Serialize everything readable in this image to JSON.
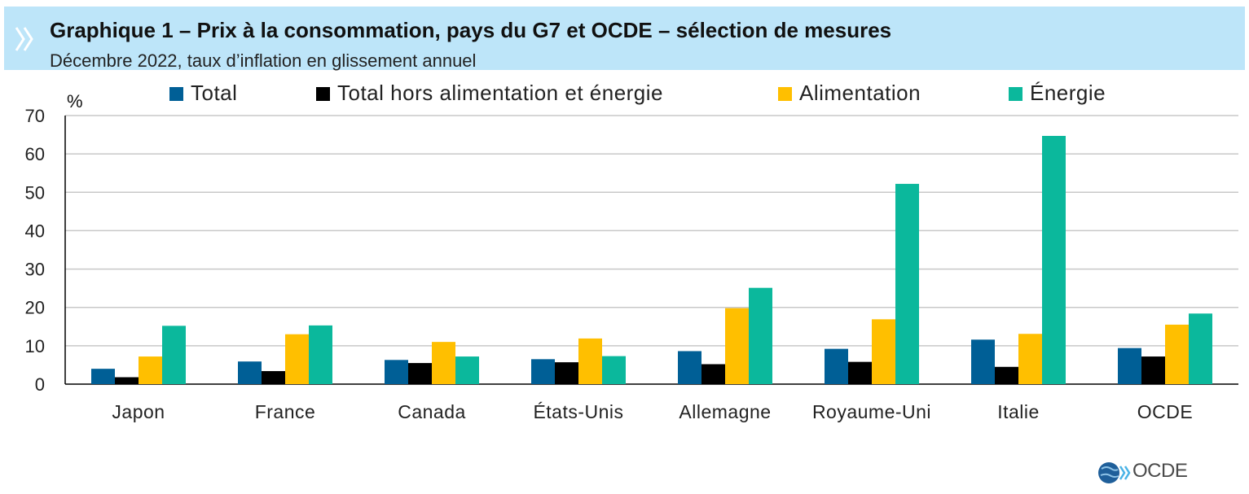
{
  "header": {
    "title": "Graphique 1 – Prix à la consommation, pays du G7 et OCDE – sélection de mesures",
    "subtitle": "Décembre 2022, taux d’inflation en glissement annuel"
  },
  "logo": {
    "text": "OCDE",
    "icon": "oecd-globe-icon"
  },
  "chart_data": {
    "type": "bar",
    "title": "Graphique 1 – Prix à la consommation, pays du G7 et OCDE – sélection de mesures",
    "subtitle": "Décembre 2022, taux d’inflation en glissement annuel",
    "ylabel": "%",
    "xlabel": "",
    "ylim": [
      0,
      70
    ],
    "yticks": [
      0,
      10,
      20,
      30,
      40,
      50,
      60,
      70
    ],
    "grid": true,
    "legend_position": "top",
    "categories": [
      "Japon",
      "France",
      "Canada",
      "États-Unis",
      "Allemagne",
      "Royaume-Uni",
      "Italie",
      "OCDE"
    ],
    "series": [
      {
        "name": "Total",
        "color": "#005f96",
        "values": [
          4.0,
          5.9,
          6.3,
          6.5,
          8.6,
          9.2,
          11.6,
          9.4
        ]
      },
      {
        "name": "Total hors alimentation et énergie",
        "color": "#000000",
        "values": [
          1.8,
          3.4,
          5.5,
          5.7,
          5.2,
          5.8,
          4.5,
          7.2
        ]
      },
      {
        "name": "Alimentation",
        "color": "#ffbf00",
        "values": [
          7.2,
          13.0,
          11.0,
          11.9,
          19.8,
          16.9,
          13.1,
          15.5
        ]
      },
      {
        "name": "Énergie",
        "color": "#0bb89c",
        "values": [
          15.2,
          15.3,
          7.2,
          7.3,
          25.1,
          52.2,
          64.7,
          18.4
        ]
      }
    ]
  }
}
